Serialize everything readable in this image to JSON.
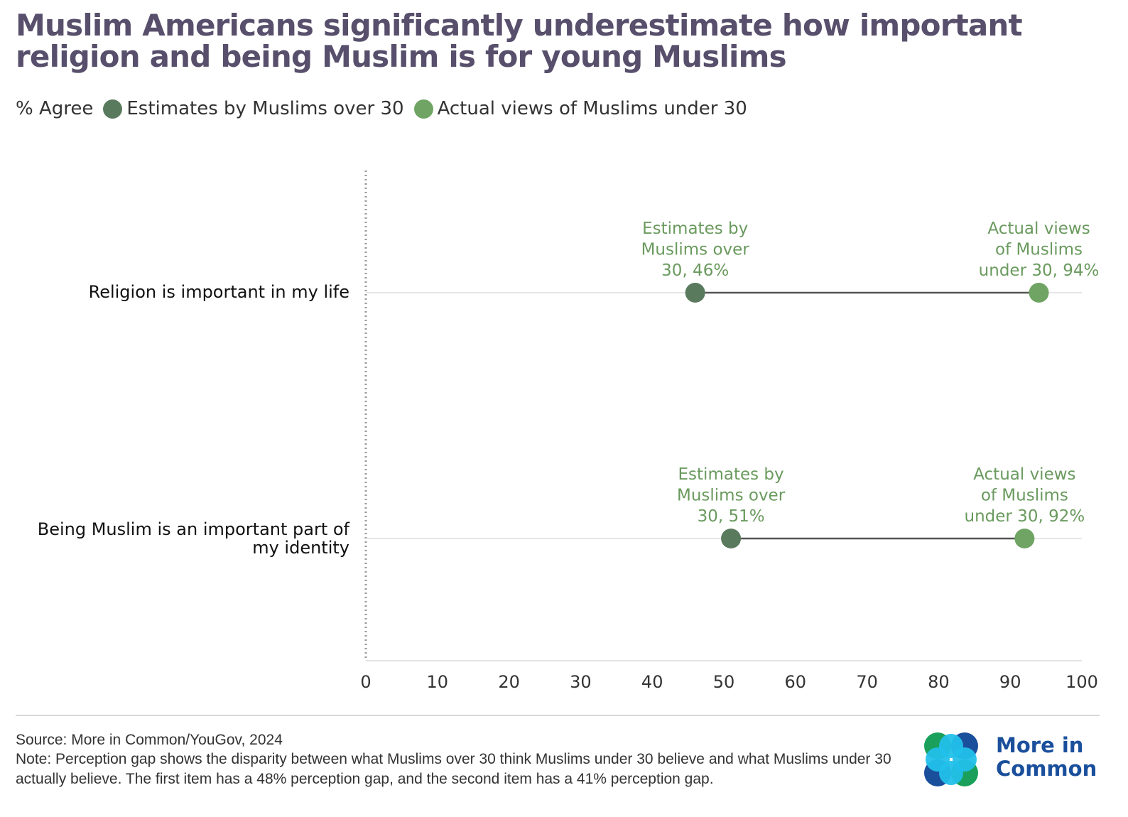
{
  "title": "Muslim Americans significantly underestimate how important religion and being Muslim is for young Muslims",
  "legend": {
    "prefix": "% Agree",
    "items": [
      {
        "label": "Estimates by Muslims over 30",
        "color": "#5a7a5e"
      },
      {
        "label": "Actual views of Muslims under 30",
        "color": "#6fa464"
      }
    ]
  },
  "colors": {
    "estimate": "#5a7a5e",
    "actual": "#6fa464",
    "connector": "#555555",
    "annotation": "#6a9a5e",
    "title": "#574f6b"
  },
  "chart_data": {
    "type": "dumbbell",
    "xlim": [
      0,
      100
    ],
    "xticks": [
      "0",
      "10",
      "20",
      "30",
      "40",
      "50",
      "60",
      "70",
      "80",
      "90",
      "100"
    ],
    "categories": [
      "Religion is important in my life",
      "Being Muslim is an important part of my identity"
    ],
    "series": [
      {
        "name": "Estimates by Muslims over 30",
        "values": [
          46,
          51
        ]
      },
      {
        "name": "Actual views of Muslims under 30",
        "values": [
          94,
          92
        ]
      }
    ],
    "annotations": [
      [
        [
          "Estimates by",
          "Muslims over",
          "30, 46%"
        ],
        [
          "Actual views",
          "of Muslims",
          "under 30, 94%"
        ]
      ],
      [
        [
          "Estimates by",
          "Muslims over",
          "30, 51%"
        ],
        [
          "Actual views",
          "of Muslims",
          "under 30, 92%"
        ]
      ]
    ]
  },
  "footer": {
    "source": "Source: More in Common/YouGov, 2024",
    "note": "Note: Perception gap shows the disparity between what Muslims over 30 think Muslims under 30 believe and what Muslims under 30 actually believe. The first item has a 48% perception gap, and the second item has a 41% perception gap.",
    "logo_line1": "More in",
    "logo_line2": "Common"
  }
}
